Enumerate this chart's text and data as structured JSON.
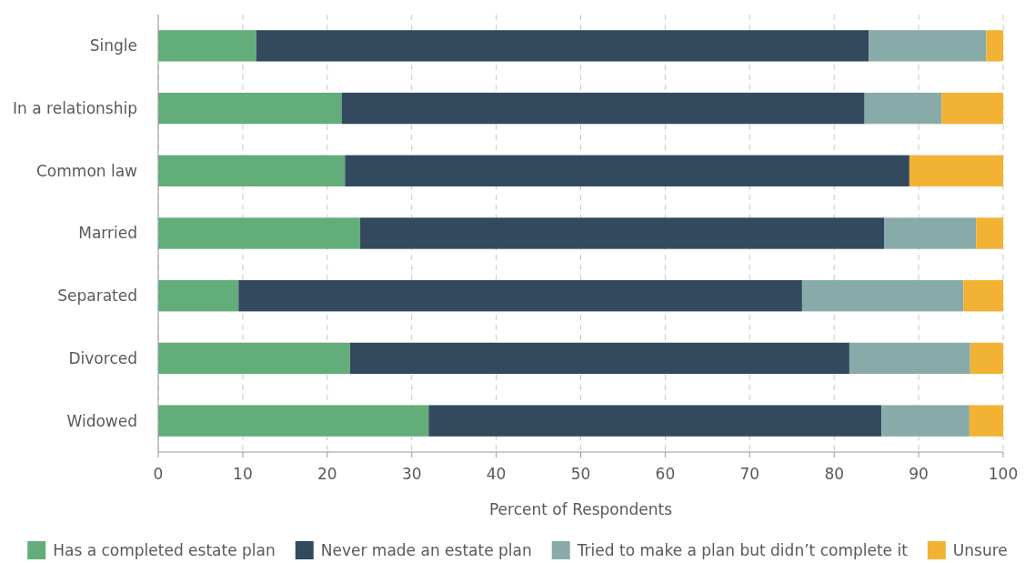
{
  "chart_data": {
    "type": "bar",
    "orientation": "horizontal",
    "stacked": true,
    "categories": [
      "Single",
      "In a relationship",
      "Common law",
      "Married",
      "Separated",
      "Divorced",
      "Widowed"
    ],
    "series": [
      {
        "name": "Has a completed estate plan",
        "color": "#63ad7a",
        "values": [
          11.6,
          21.7,
          22.1,
          23.9,
          9.5,
          22.7,
          32.0
        ]
      },
      {
        "name": "Never made an estate plan",
        "color": "#33495e",
        "values": [
          72.5,
          61.9,
          66.8,
          62.0,
          66.7,
          59.1,
          53.6
        ]
      },
      {
        "name": "Tried to make a plan but didn’t complete it",
        "color": "#88aba9",
        "values": [
          13.9,
          9.1,
          0,
          10.9,
          19.1,
          14.3,
          10.4
        ]
      },
      {
        "name": "Unsure",
        "color": "#f2b233",
        "values": [
          2.0,
          7.3,
          11.1,
          3.2,
          4.7,
          3.9,
          4.0
        ]
      }
    ],
    "xlim": [
      0,
      100
    ],
    "xticks": [
      0,
      10,
      20,
      30,
      40,
      50,
      60,
      70,
      80,
      90,
      100
    ],
    "xlabel": "Percent of Respondents",
    "grid": "x",
    "legend": "bottom"
  }
}
